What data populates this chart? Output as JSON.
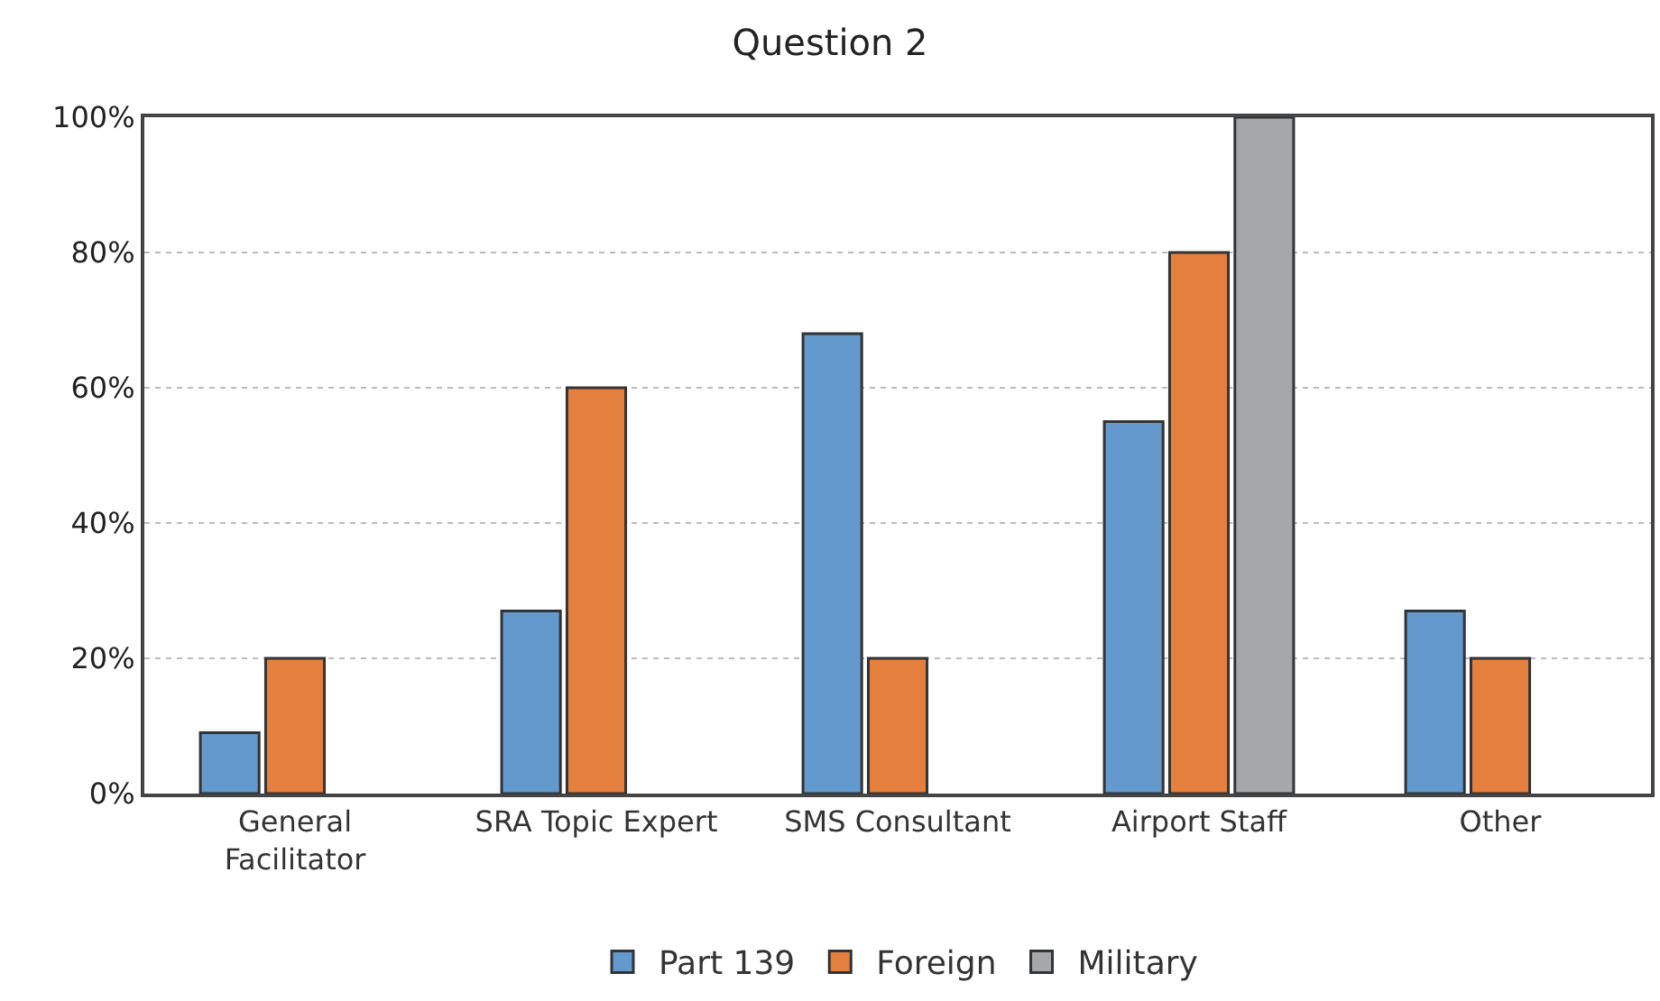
{
  "chart_data": {
    "type": "bar",
    "title": "Question 2",
    "categories": [
      "General\nFacilitator",
      "SRA Topic Expert",
      "SMS Consultant",
      "Airport Staff",
      "Other"
    ],
    "series": [
      {
        "name": "Part 139",
        "color": "#6399cc",
        "values": [
          9,
          27,
          68,
          55,
          27
        ]
      },
      {
        "name": "Foreign",
        "color": "#e57f3e",
        "values": [
          20,
          60,
          20,
          80,
          20
        ]
      },
      {
        "name": "Military",
        "color": "#a6a7a9",
        "values": [
          null,
          null,
          null,
          100,
          null
        ]
      }
    ],
    "ylim": [
      0,
      100
    ],
    "yticks": [
      {
        "value": 0,
        "label": "0%"
      },
      {
        "value": 20,
        "label": "20%"
      },
      {
        "value": 40,
        "label": "40%"
      },
      {
        "value": 60,
        "label": "60%"
      },
      {
        "value": 80,
        "label": "80%"
      },
      {
        "value": 100,
        "label": "100%"
      }
    ],
    "grid": "y",
    "legend": "bottom"
  }
}
